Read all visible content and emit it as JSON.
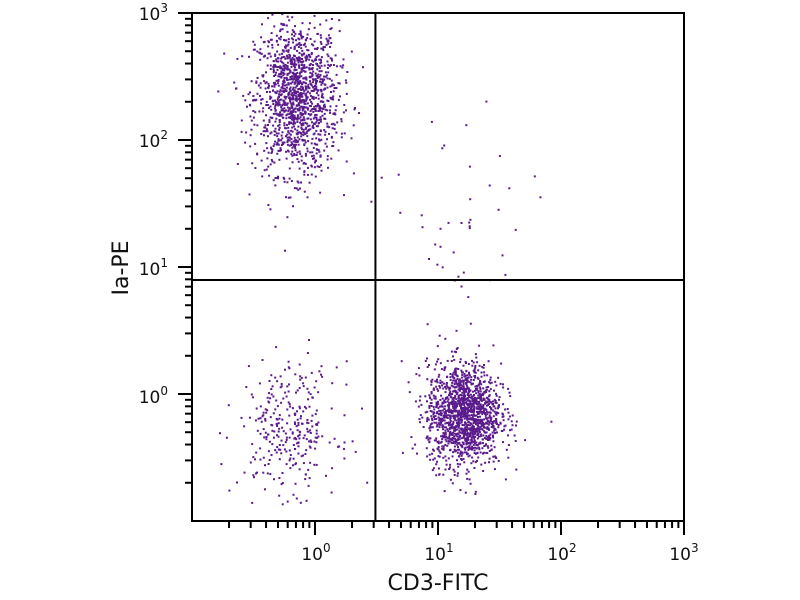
{
  "chart_data": {
    "type": "scatter",
    "title": "",
    "xlabel": "CD3-FITC",
    "ylabel": "Ia-PE",
    "xscale": "log",
    "yscale": "log",
    "xlim": [
      0.1,
      1000
    ],
    "ylim": [
      0.1,
      1000
    ],
    "x_ticks": [
      {
        "value": 1,
        "base": "10",
        "exp": "0"
      },
      {
        "value": 10,
        "base": "10",
        "exp": "1"
      },
      {
        "value": 100,
        "base": "10",
        "exp": "2"
      },
      {
        "value": 1000,
        "base": "10",
        "exp": "3"
      }
    ],
    "y_ticks": [
      {
        "value": 1,
        "base": "10",
        "exp": "0"
      },
      {
        "value": 10,
        "base": "10",
        "exp": "1"
      },
      {
        "value": 100,
        "base": "10",
        "exp": "2"
      },
      {
        "value": 1000,
        "base": "10",
        "exp": "3"
      }
    ],
    "quadrant_gates": {
      "x": 3.1,
      "y": 7.9
    },
    "point_color": "#5b1a8c",
    "populations": [
      {
        "name": "Ia+ CD3- (upper-left)",
        "n": 1400,
        "x_center": 0.7,
        "x_log_sd": 0.17,
        "y_center": 220,
        "y_log_sd": 0.3
      },
      {
        "name": "Ia- CD3+ (lower-right)",
        "n": 1500,
        "x_center": 16,
        "x_log_sd": 0.15,
        "y_center": 0.7,
        "y_log_sd": 0.2
      },
      {
        "name": "Ia- CD3- (lower-left)",
        "n": 300,
        "x_center": 0.6,
        "x_log_sd": 0.2,
        "y_center": 0.55,
        "y_log_sd": 0.25
      },
      {
        "name": "CD3+ tail (upper-right)",
        "n": 45,
        "x_center": 14,
        "x_log_sd": 0.3,
        "y_center": 20,
        "y_log_sd": 0.5
      }
    ]
  }
}
